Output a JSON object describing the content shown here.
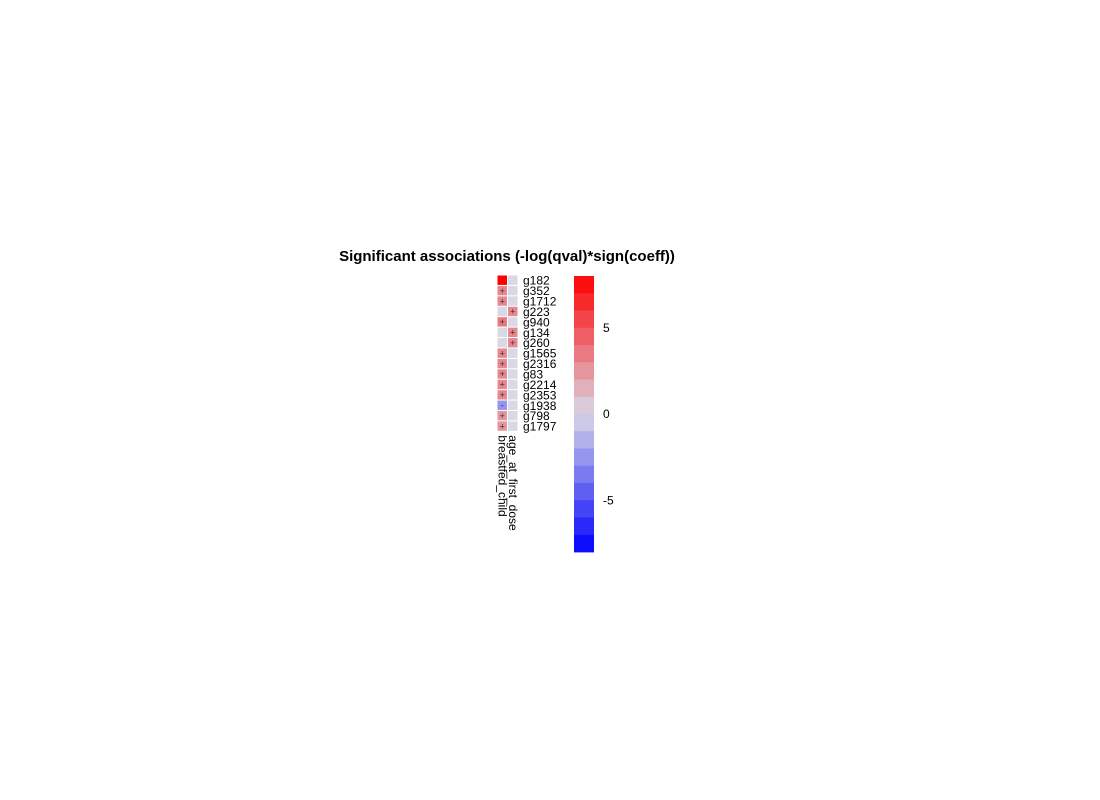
{
  "chart_data": {
    "type": "heatmap",
    "title": "Significant associations (-log(qval)*sign(coeff))",
    "columns": [
      "breastfed_child",
      "age_at_first_dose"
    ],
    "rows": [
      "g182",
      "g352",
      "g1712",
      "g223",
      "g940",
      "g134",
      "g260",
      "g1565",
      "g2316",
      "g83",
      "g2214",
      "g2353",
      "g1938",
      "g798",
      "g1797"
    ],
    "values": [
      [
        8.0,
        0
      ],
      [
        3.0,
        0
      ],
      [
        3.0,
        0
      ],
      [
        0,
        3.0
      ],
      [
        3.5,
        0
      ],
      [
        0,
        3.0
      ],
      [
        0,
        3.0
      ],
      [
        3.0,
        0
      ],
      [
        3.0,
        0
      ],
      [
        3.0,
        0
      ],
      [
        3.0,
        0
      ],
      [
        3.0,
        0
      ],
      [
        -2.5,
        0
      ],
      [
        2.5,
        0
      ],
      [
        2.5,
        0
      ]
    ],
    "cell_labels": [
      [
        "",
        ""
      ],
      [
        "+",
        ""
      ],
      [
        "+",
        ""
      ],
      [
        "",
        "+"
      ],
      [
        "+",
        ""
      ],
      [
        "",
        "+"
      ],
      [
        "",
        "+"
      ],
      [
        "+",
        ""
      ],
      [
        "+",
        ""
      ],
      [
        "+",
        ""
      ],
      [
        "+",
        ""
      ],
      [
        "+",
        ""
      ],
      [
        "-",
        ""
      ],
      [
        "+",
        ""
      ],
      [
        "+",
        ""
      ]
    ],
    "colorbar": {
      "range": [
        -8,
        8
      ],
      "ticks": [
        5,
        0,
        -5
      ],
      "tick_labels": [
        "5",
        "0",
        "-5"
      ],
      "low_color": "#0000ff",
      "mid_color": "#d9d9e6",
      "high_color": "#ff0000"
    }
  }
}
